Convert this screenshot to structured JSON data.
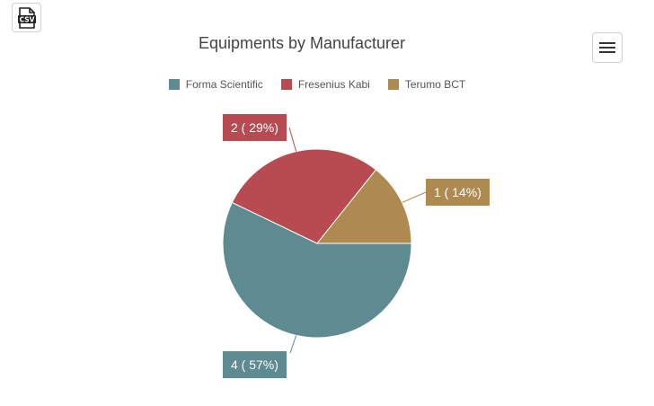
{
  "toolbar": {
    "csv_label": "CSV"
  },
  "icons": {
    "export": "csv-file-icon",
    "menu": "hamburger-menu-icon"
  },
  "chart_data": {
    "type": "pie",
    "title": "Equipments by Manufacturer",
    "legend_position": "top-center",
    "slices": [
      {
        "name": "Forma Scientific",
        "value": 4,
        "label": "4 ( 57%)",
        "color": "#5e8a92"
      },
      {
        "name": "Fresenius Kabi",
        "value": 2,
        "label": "2 ( 29%)",
        "color": "#b84b52"
      },
      {
        "name": "Terumo BCT",
        "value": 1,
        "label": "1 ( 14%)",
        "color": "#ae8a50"
      }
    ]
  }
}
